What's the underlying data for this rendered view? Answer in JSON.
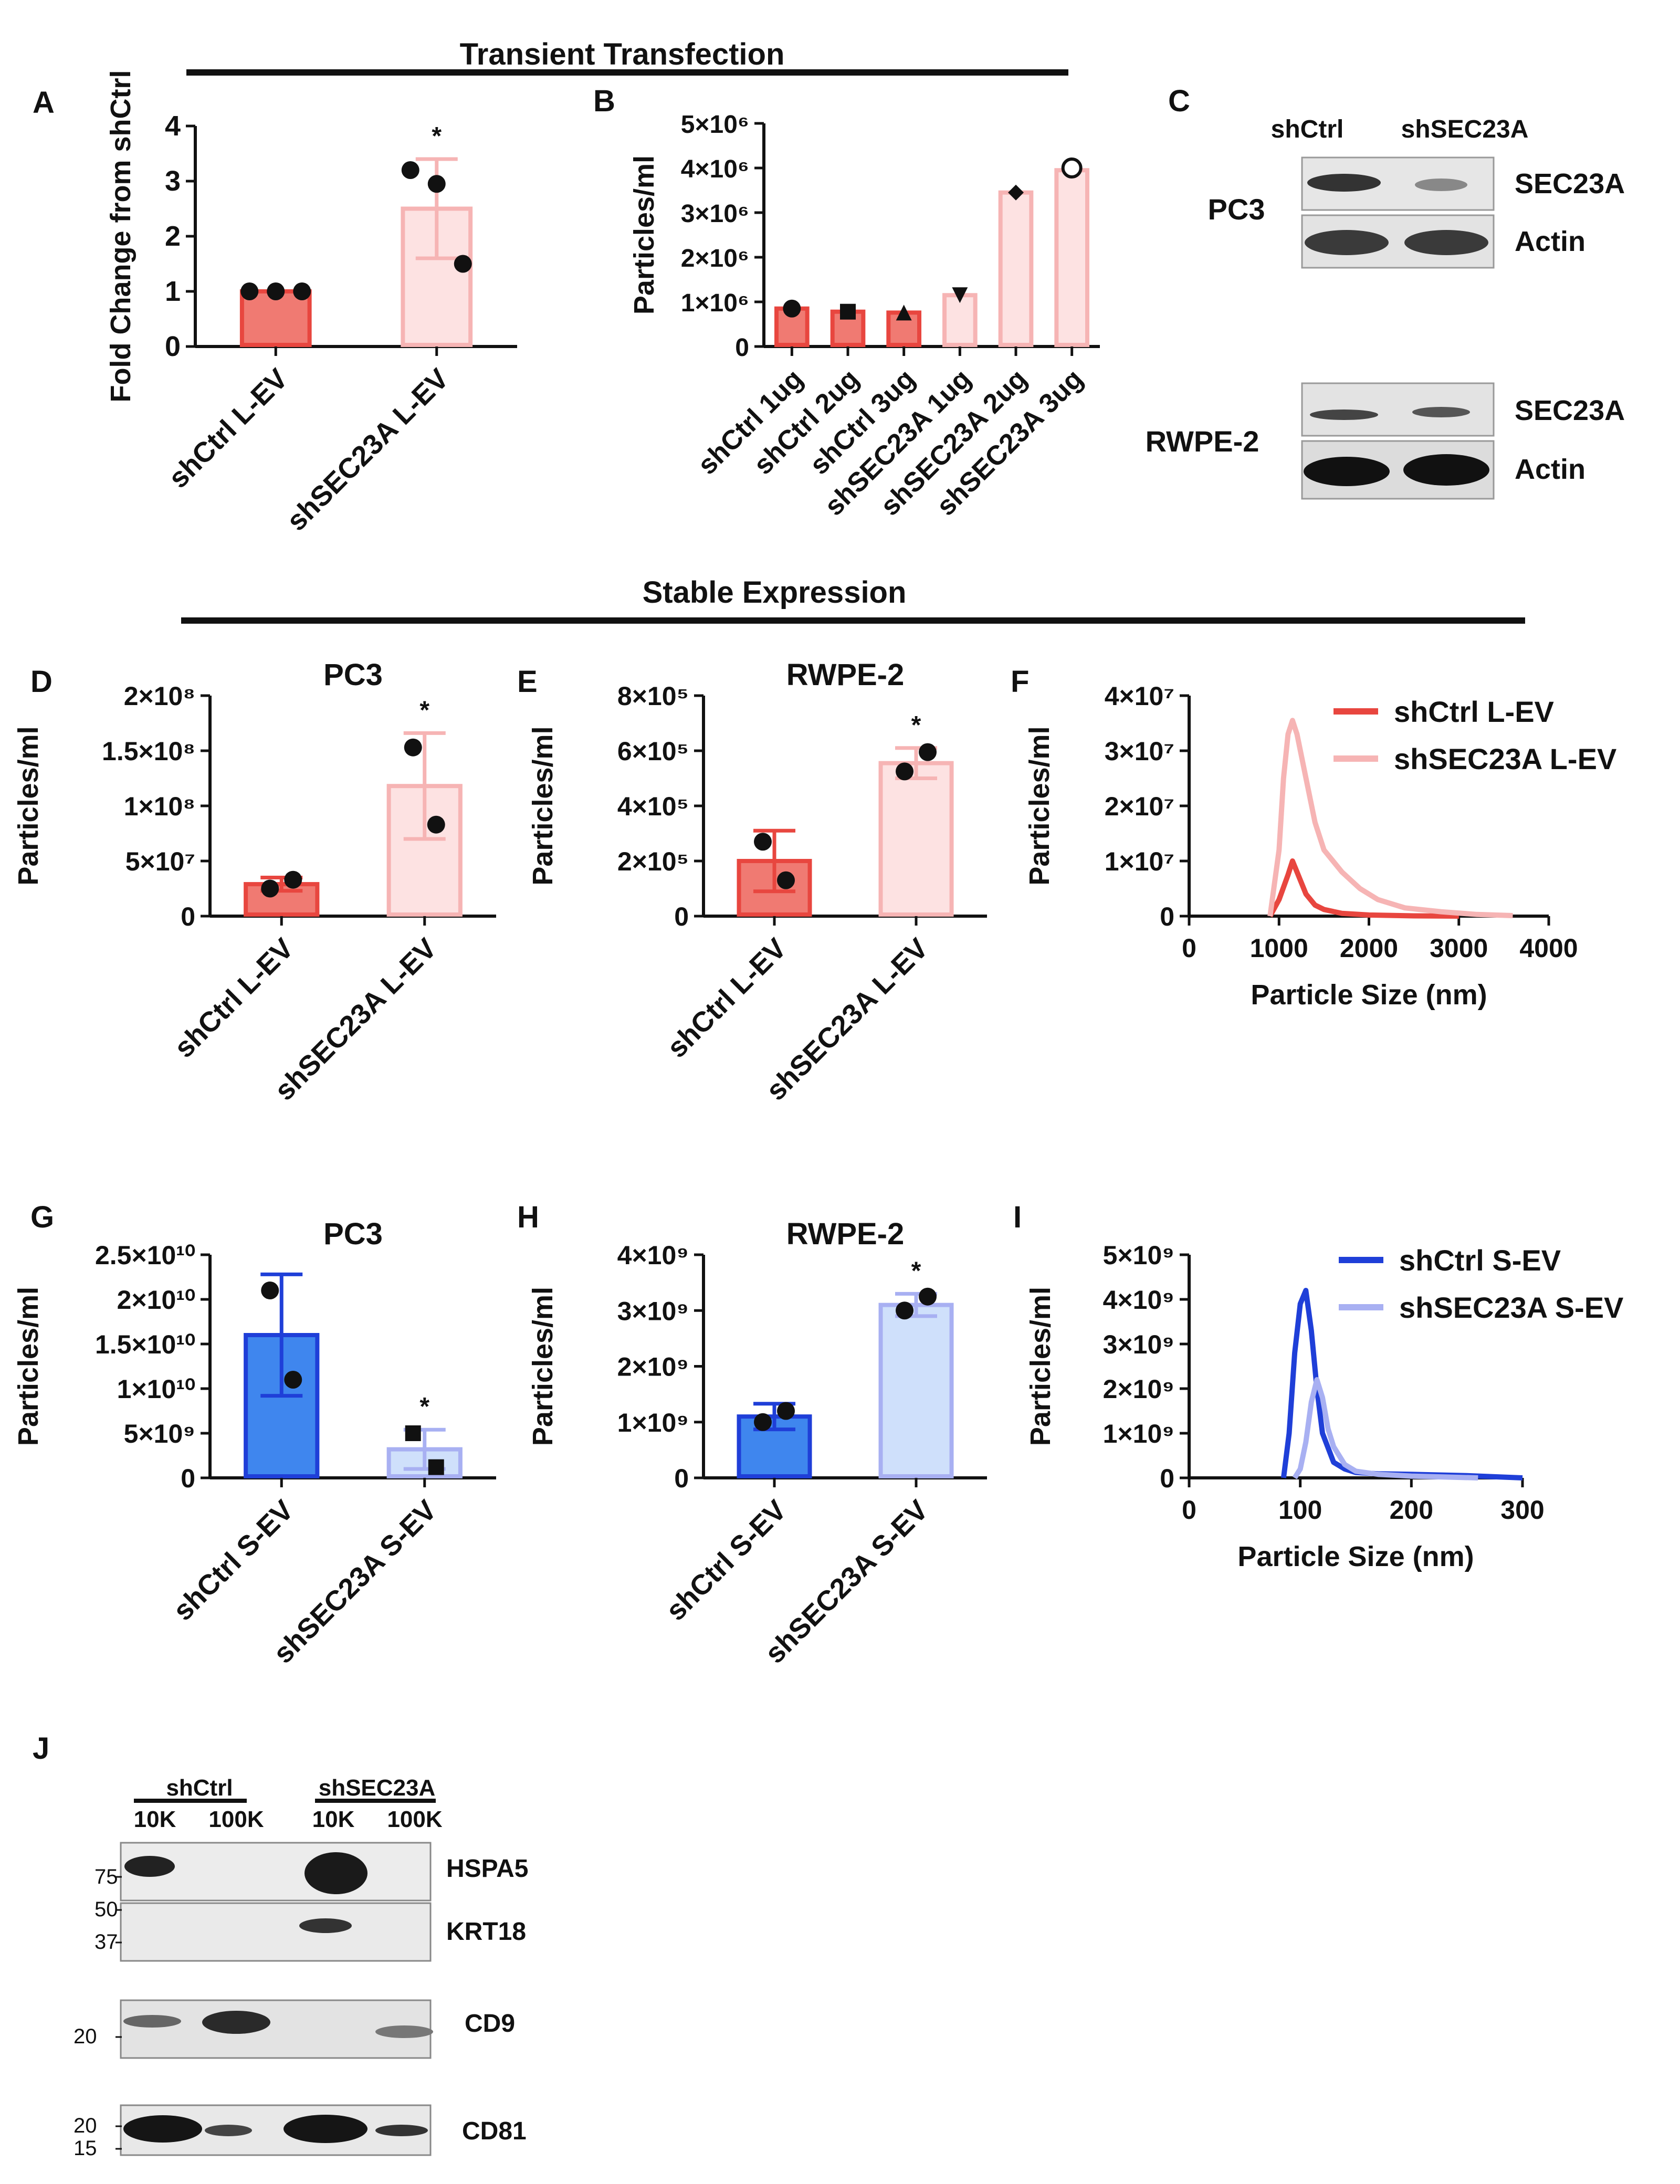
{
  "sections": {
    "transient": "Transient Transfection",
    "stable": "Stable Expression"
  },
  "panel_letters": [
    "A",
    "B",
    "C",
    "D",
    "E",
    "F",
    "G",
    "H",
    "I",
    "J"
  ],
  "colors": {
    "red_dark": "#e8463f",
    "red_dark_fill": "#f07a72",
    "red_light": "#f6b4b4",
    "red_light_fill": "#fde2e2",
    "blue_dark": "#1f3fd8",
    "blue_dark_fill": "#3f86ee",
    "blue_light": "#a8b0f2",
    "blue_light_fill": "#cfe0fb"
  },
  "chart_data": [
    {
      "id": "A",
      "type": "bar",
      "title": "",
      "ylabel": "Fold Change from shCtrl",
      "ylim": [
        0,
        4
      ],
      "yticks": [
        "0",
        "1",
        "2",
        "3",
        "4"
      ],
      "categories": [
        "shCtrl L-EV",
        "shSEC23A L-EV"
      ],
      "values": [
        1.0,
        2.5
      ],
      "error": [
        0,
        0.9
      ],
      "points": [
        [
          1.0,
          1.0,
          1.0
        ],
        [
          3.2,
          2.95,
          1.5
        ]
      ],
      "significance": [
        "",
        "*"
      ]
    },
    {
      "id": "B",
      "type": "bar",
      "title": "",
      "ylabel": "Particles/ml",
      "ylim": [
        0,
        5000000
      ],
      "yticks": [
        "0",
        "1×10⁶",
        "2×10⁶",
        "3×10⁶",
        "4×10⁶",
        "5×10⁶"
      ],
      "categories": [
        "shCtrl 1ug",
        "shCtrl 2ug",
        "shCtrl 3ug",
        "shSEC23A 1ug",
        "shSEC23A 2ug",
        "shSEC23A 3ug"
      ],
      "values": [
        850000,
        780000,
        760000,
        1150000,
        3450000,
        3950000
      ],
      "markers": [
        "circle",
        "square",
        "triangle-up",
        "triangle-down",
        "diamond",
        "circle-open"
      ],
      "point_values": [
        850000,
        780000,
        760000,
        1150000,
        3450000,
        4000000
      ]
    },
    {
      "id": "D",
      "type": "bar",
      "title": "PC3",
      "ylabel": "Particles/ml",
      "ylim": [
        0,
        200000000
      ],
      "yticks": [
        "0",
        "5×10⁷",
        "1×10⁸",
        "1.5×10⁸",
        "2×10⁸"
      ],
      "categories": [
        "shCtrl L-EV",
        "shSEC23A L-EV"
      ],
      "values": [
        29000000,
        118000000
      ],
      "error": [
        6000000,
        48000000
      ],
      "points": [
        [
          25000000,
          33000000
        ],
        [
          153000000,
          83000000
        ]
      ],
      "significance": [
        "",
        "*"
      ]
    },
    {
      "id": "E",
      "type": "bar",
      "title": "RWPE-2",
      "ylabel": "Particles/ml",
      "ylim": [
        0,
        800000
      ],
      "yticks": [
        "0",
        "2×10⁵",
        "4×10⁵",
        "6×10⁵",
        "8×10⁵"
      ],
      "categories": [
        "shCtrl L-EV",
        "shSEC23A L-EV"
      ],
      "values": [
        200000,
        555000
      ],
      "error": [
        110000,
        55000
      ],
      "points": [
        [
          270000,
          130000
        ],
        [
          525000,
          595000
        ]
      ],
      "significance": [
        "",
        "*"
      ]
    },
    {
      "id": "F",
      "type": "line",
      "title": "",
      "xlabel": "Particle Size (nm)",
      "ylabel": "Particles/ml",
      "xlim": [
        0,
        4000
      ],
      "ylim": [
        0,
        40000000
      ],
      "xticks": [
        "0",
        "1000",
        "2000",
        "3000",
        "4000"
      ],
      "yticks": [
        "0",
        "1×10⁷",
        "2×10⁷",
        "3×10⁷",
        "4×10⁷"
      ],
      "series": [
        {
          "name": "shCtrl L-EV",
          "x": [
            900,
            1000,
            1100,
            1150,
            1200,
            1300,
            1400,
            1500,
            1700,
            2000,
            2500,
            3000
          ],
          "y": [
            0,
            3000000,
            7500000,
            10000000,
            8000000,
            4000000,
            2000000,
            1200000,
            500000,
            200000,
            50000,
            0
          ]
        },
        {
          "name": "shSEC23A L-EV",
          "x": [
            900,
            1000,
            1050,
            1100,
            1150,
            1200,
            1300,
            1400,
            1500,
            1700,
            1900,
            2100,
            2400,
            2800,
            3200,
            3600
          ],
          "y": [
            0,
            12000000,
            25000000,
            33000000,
            35500000,
            33000000,
            25000000,
            17000000,
            12000000,
            8000000,
            5000000,
            3000000,
            1500000,
            800000,
            300000,
            100000
          ]
        }
      ]
    },
    {
      "id": "G",
      "type": "bar",
      "title": "PC3",
      "ylabel": "Particles/ml",
      "ylim": [
        0,
        25000000000
      ],
      "yticks": [
        "0",
        "5×10⁹",
        "1×10¹⁰",
        "1.5×10¹⁰",
        "2×10¹⁰",
        "2.5×10¹⁰"
      ],
      "categories": [
        "shCtrl S-EV",
        "shSEC23A S-EV"
      ],
      "values": [
        16000000000,
        3200000000
      ],
      "error": [
        6800000000,
        2200000000
      ],
      "points": [
        [
          21000000000,
          11000000000
        ],
        [
          5000000000,
          1200000000
        ]
      ],
      "markers": [
        "circle",
        "square"
      ],
      "significance": [
        "",
        "*"
      ]
    },
    {
      "id": "H",
      "type": "bar",
      "title": "RWPE-2",
      "ylabel": "Particles/ml",
      "ylim": [
        0,
        4000000000
      ],
      "yticks": [
        "0",
        "1×10⁹",
        "2×10⁹",
        "3×10⁹",
        "4×10⁹"
      ],
      "categories": [
        "shCtrl S-EV",
        "shSEC23A S-EV"
      ],
      "values": [
        1100000000,
        3100000000
      ],
      "error": [
        230000000,
        200000000
      ],
      "points": [
        [
          1000000000,
          1200000000
        ],
        [
          3000000000,
          3250000000
        ]
      ],
      "significance": [
        "",
        "*"
      ]
    },
    {
      "id": "I",
      "type": "line",
      "title": "",
      "xlabel": "Particle Size (nm)",
      "ylabel": "Particles/ml",
      "xlim": [
        0,
        300
      ],
      "ylim": [
        0,
        5000000000
      ],
      "xticks": [
        "0",
        "100",
        "200",
        "300"
      ],
      "yticks": [
        "0",
        "1×10⁹",
        "2×10⁹",
        "3×10⁹",
        "4×10⁹",
        "5×10⁹"
      ],
      "series": [
        {
          "name": "shCtrl S-EV",
          "x": [
            85,
            90,
            95,
            100,
            105,
            110,
            115,
            120,
            130,
            140,
            150,
            170,
            200,
            250,
            300
          ],
          "y": [
            0,
            1000000000,
            2800000000,
            3900000000,
            4200000000,
            3300000000,
            2000000000,
            1000000000,
            350000000,
            200000000,
            120000000,
            90000000,
            80000000,
            50000000,
            0
          ]
        },
        {
          "name": "shSEC23A S-EV",
          "x": [
            95,
            100,
            105,
            110,
            115,
            120,
            125,
            130,
            140,
            150,
            170,
            200,
            260
          ],
          "y": [
            0,
            200000000,
            800000000,
            1700000000,
            2200000000,
            1800000000,
            1100000000,
            700000000,
            300000000,
            150000000,
            80000000,
            40000000,
            0
          ]
        }
      ]
    }
  ],
  "panel_c": {
    "lanes": [
      "shCtrl",
      "shSEC23A"
    ],
    "cells": [
      "PC3",
      "RWPE-2"
    ],
    "bands": [
      "SEC23A",
      "Actin"
    ]
  },
  "panel_j": {
    "groups": [
      "shCtrl",
      "shSEC23A"
    ],
    "fractions": [
      "10K",
      "100K",
      "10K",
      "100K"
    ],
    "proteins": [
      "HSPA5",
      "KRT18",
      "CD9",
      "CD81"
    ],
    "markers": {
      "hspa5": [
        "75"
      ],
      "krt18": [
        "50",
        "37"
      ],
      "cd9": [
        "20"
      ],
      "cd81": [
        "20",
        "15"
      ]
    }
  }
}
